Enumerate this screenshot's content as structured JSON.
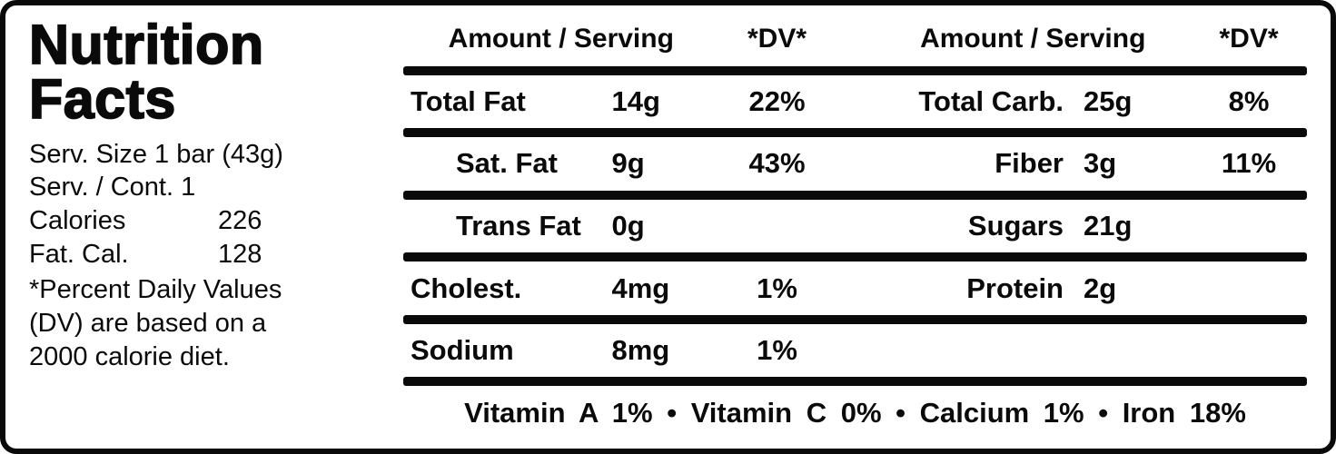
{
  "header": {
    "title_line1": "Nutrition",
    "title_line2": "Facts"
  },
  "serving": {
    "size_line": "Serv. Size 1 bar (43g)",
    "container_line": "Serv. / Cont. 1",
    "calories_label": "Calories",
    "calories_value": "226",
    "fat_cal_label": "Fat. Cal.",
    "fat_cal_value": "128",
    "footnote_line1": "*Percent Daily Values",
    "footnote_line2": "(DV) are based on a",
    "footnote_line3": "2000 calorie diet."
  },
  "table": {
    "left_column": {
      "header_amount": "Amount / Serving",
      "header_dv": "*DV*",
      "rows": [
        {
          "name": "Total Fat",
          "amount": "14g",
          "dv": "22%"
        },
        {
          "name": "Sat. Fat",
          "amount": "9g",
          "dv": "43%"
        },
        {
          "name": "Trans Fat",
          "amount": "0g",
          "dv": ""
        },
        {
          "name": "Cholest.",
          "amount": "4mg",
          "dv": "1%"
        },
        {
          "name": "Sodium",
          "amount": "8mg",
          "dv": "1%"
        }
      ]
    },
    "right_column": {
      "header_amount": "Amount / Serving",
      "header_dv": "*DV*",
      "rows": [
        {
          "name": "Total Carb.",
          "amount": "25g",
          "dv": "8%"
        },
        {
          "name": "Fiber",
          "amount": "3g",
          "dv": "11%"
        },
        {
          "name": "Sugars",
          "amount": "21g",
          "dv": ""
        },
        {
          "name": "Protein",
          "amount": "2g",
          "dv": ""
        }
      ]
    },
    "vitamins_line": "Vitamin A 1% • Vitamin C 0% • Calcium 1% • Iron 18%"
  },
  "colors": {
    "text": "#0a0a0a",
    "background": "#ffffff"
  }
}
